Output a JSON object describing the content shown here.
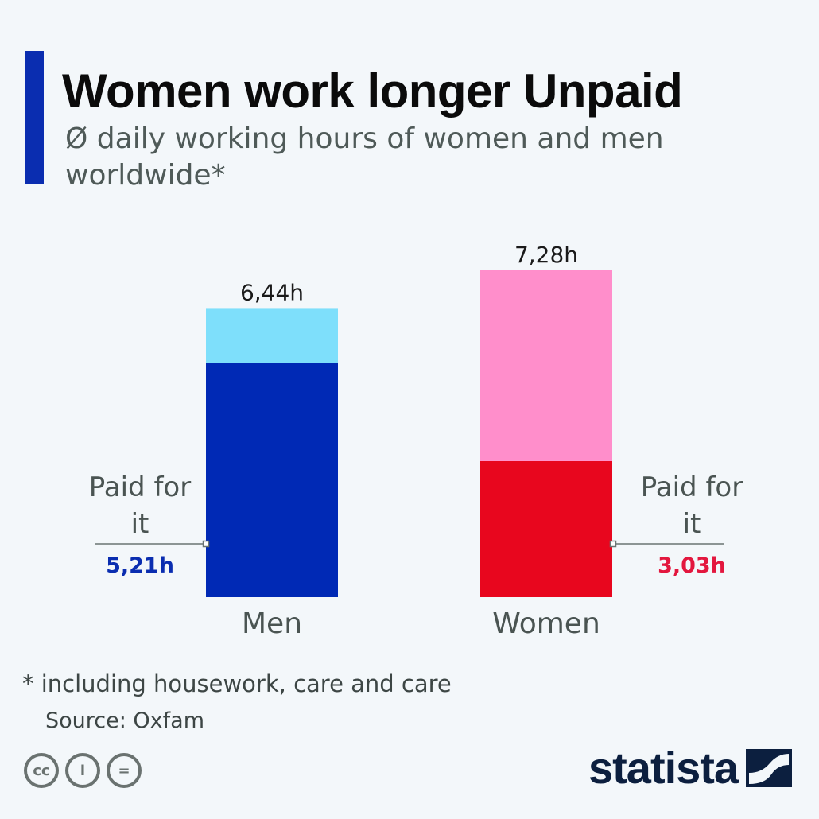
{
  "colors": {
    "accent": "#0a2db0",
    "men_unpaid": "#7edffb",
    "men_paid": "#0029b5",
    "women_unpaid": "#ff8ecb",
    "women_paid": "#e8061e",
    "men_label": "#0a2db0",
    "women_label": "#e3173e",
    "brand": "#0c1f3f"
  },
  "header": {
    "title": "Women work longer Unpaid",
    "subtitle": "Ø daily working hours of women and men worldwide*"
  },
  "chart_data": {
    "type": "bar",
    "stacked": true,
    "categories": [
      "Men",
      "Women"
    ],
    "series": [
      {
        "name": "Paid for it",
        "values": [
          5.21,
          3.03
        ]
      },
      {
        "name": "",
        "values": [
          1.23,
          4.25
        ]
      }
    ],
    "totals": [
      6.44,
      7.28
    ],
    "total_labels": [
      "6,44h",
      "7,28h"
    ],
    "paid_labels": [
      "5,21h",
      "3,03h"
    ],
    "paid_annotation": [
      "Paid for",
      "it"
    ],
    "ylim": [
      0,
      7.28
    ],
    "grid": false,
    "legend": "none"
  },
  "footer": {
    "footnote": "* including housework, care and care",
    "source": "Source: Oxfam",
    "license_icons": [
      "cc-icon",
      "by-icon",
      "nd-icon"
    ],
    "license_glyphs": [
      "cc",
      "i",
      "="
    ],
    "brand": "statista"
  }
}
